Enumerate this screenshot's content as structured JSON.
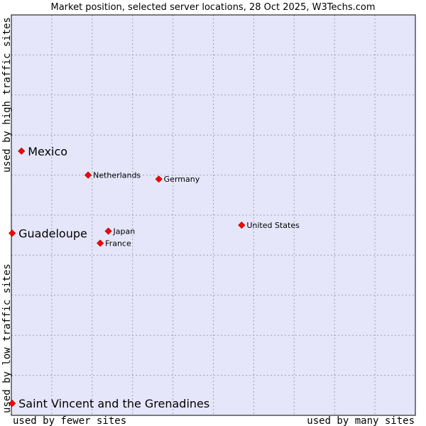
{
  "chart_data": {
    "type": "scatter",
    "title": "Market position, selected server locations, 28 Oct 2025, W3Techs.com",
    "xlabel_low": "used by fewer sites",
    "xlabel_high": "used by many sites",
    "ylabel_low": "used by low traffic sites",
    "ylabel_high": "used by high traffic sites",
    "grid": true,
    "xlim": [
      0,
      10
    ],
    "ylim": [
      0,
      10
    ],
    "colors": {
      "plot_bg": "#e6e6fa",
      "grid": "#a0a0b4",
      "marker": "#ff0000",
      "marker_stroke": "#b40000",
      "frame": "#000000"
    },
    "points": [
      {
        "name": "Mexico",
        "x": 0.25,
        "y": 6.6,
        "emphasis": true
      },
      {
        "name": "Guadeloupe",
        "x": 0.02,
        "y": 4.55,
        "emphasis": true
      },
      {
        "name": "Saint Vincent and the Grenadines",
        "x": 0.02,
        "y": 0.3,
        "emphasis": true
      },
      {
        "name": "Netherlands",
        "x": 1.9,
        "y": 6.0,
        "emphasis": false
      },
      {
        "name": "Germany",
        "x": 3.65,
        "y": 5.9,
        "emphasis": false
      },
      {
        "name": "United States",
        "x": 5.7,
        "y": 4.75,
        "emphasis": false
      },
      {
        "name": "Japan",
        "x": 2.4,
        "y": 4.6,
        "emphasis": false
      },
      {
        "name": "France",
        "x": 2.2,
        "y": 4.3,
        "emphasis": false
      }
    ]
  }
}
